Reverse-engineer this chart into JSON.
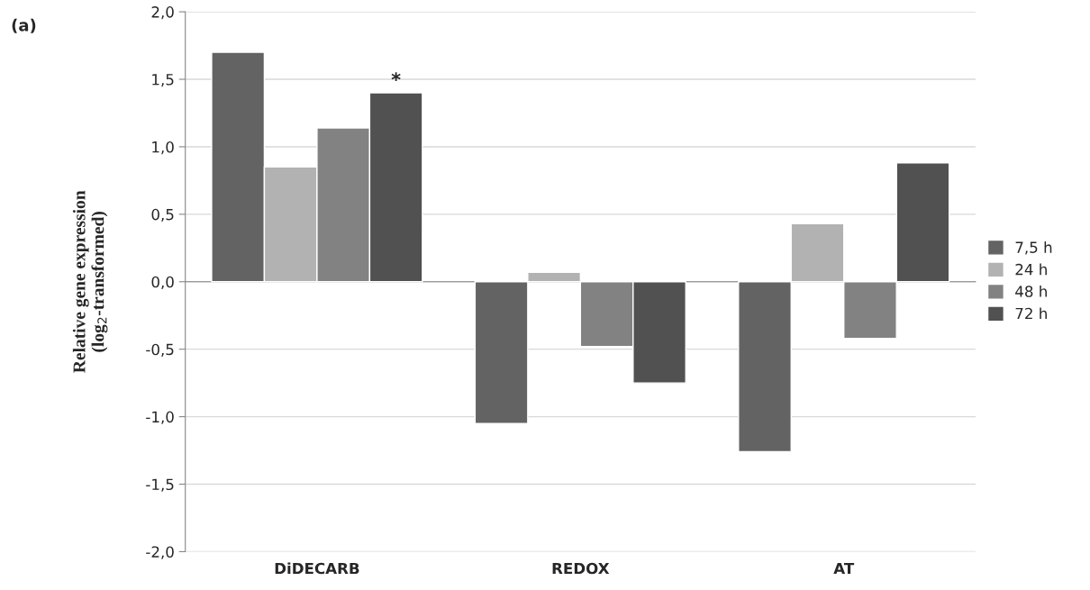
{
  "chart_data": {
    "type": "bar",
    "ylabel": "Relative gene expression\n(log$_{2}$-transformed)",
    "categories": [
      "DiDECARB",
      "REDOX",
      "AT"
    ],
    "series": [
      {
        "name": "7,5 h",
        "color": "#636363",
        "values": [
          1.7,
          -1.05,
          -1.26
        ]
      },
      {
        "name": "24 h",
        "color": "#b2b2b2",
        "values": [
          0.85,
          0.07,
          0.43
        ]
      },
      {
        "name": "48 h",
        "color": "#828282",
        "values": [
          1.14,
          -0.48,
          -0.42
        ]
      },
      {
        "name": "72 h",
        "color": "#515151",
        "values": [
          1.4,
          -0.75,
          0.88
        ]
      }
    ],
    "ylim": [
      -2.0,
      2.0
    ],
    "yticks": [
      {
        "value": -2.0,
        "label": "-2,0"
      },
      {
        "value": -1.5,
        "label": "-1,5"
      },
      {
        "value": -1.0,
        "label": "-1,0"
      },
      {
        "value": -0.5,
        "label": "-0,5"
      },
      {
        "value": 0.0,
        "label": "0,0"
      },
      {
        "value": 0.5,
        "label": "0,5"
      },
      {
        "value": 1.0,
        "label": "1,0"
      },
      {
        "value": 1.5,
        "label": "1,5"
      },
      {
        "value": 2.0,
        "label": "2,0"
      }
    ],
    "grid": "y",
    "legend": "right",
    "annotations": [
      "(a)",
      "*"
    ]
  }
}
